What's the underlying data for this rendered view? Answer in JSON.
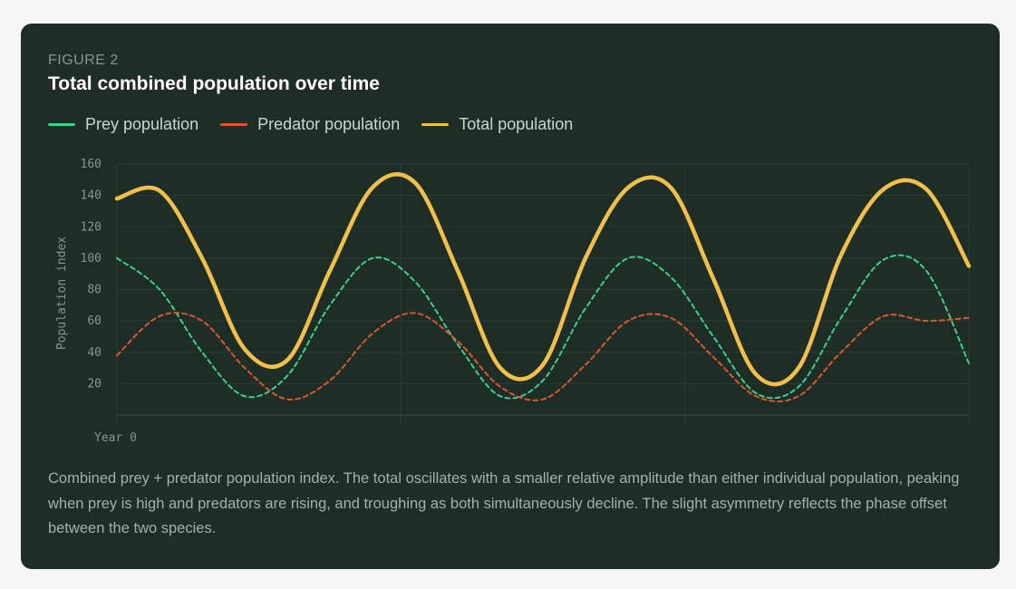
{
  "figure": {
    "label": "FIGURE 2",
    "title": "Total combined population over time",
    "caption": "Combined prey + predator population index. The total oscillates with a smaller relative amplitude than either individual population, peaking when prey is high and predators are rising, and troughing as both simultaneously decline. The slight asymmetry reflects the phase offset between the two species."
  },
  "colors": {
    "background": "#1f2d27",
    "grid": "#2c3d33",
    "axis_text": "#7f9a8c",
    "prey": "#3ecf8e",
    "predator": "#d65a2e",
    "total": "#f2c04a"
  },
  "chart_data": {
    "type": "line",
    "ylabel": "Population index",
    "xlabel": "",
    "x_tick_labels": [
      "Year 0"
    ],
    "ylim": [
      0,
      160
    ],
    "yticks": [
      20,
      40,
      60,
      80,
      100,
      120,
      140,
      160
    ],
    "xlim": [
      0,
      10
    ],
    "grid": true,
    "legend_position": "top-left",
    "series": [
      {
        "name": "Prey population",
        "color": "#3ecf8e",
        "style": "dashed",
        "x": [
          0,
          0.5,
          1,
          1.5,
          2,
          2.5,
          3,
          3.5,
          4,
          4.5,
          5,
          5.5,
          6,
          6.5,
          7,
          7.5,
          8,
          8.5,
          9,
          9.5,
          10
        ],
        "y": [
          100,
          80,
          40,
          12,
          25,
          70,
          100,
          85,
          45,
          12,
          22,
          68,
          100,
          88,
          50,
          14,
          18,
          62,
          99,
          92,
          33
        ]
      },
      {
        "name": "Predator population",
        "color": "#d65a2e",
        "style": "dashed",
        "x": [
          0,
          0.5,
          1,
          1.5,
          2,
          2.5,
          3,
          3.5,
          4,
          4.5,
          5,
          5.5,
          6,
          6.5,
          7,
          7.5,
          8,
          8.5,
          9,
          9.5,
          10
        ],
        "y": [
          38,
          63,
          60,
          30,
          10,
          22,
          52,
          65,
          47,
          18,
          10,
          32,
          60,
          62,
          37,
          12,
          12,
          40,
          63,
          60,
          62
        ]
      },
      {
        "name": "Total population",
        "color": "#f2c04a",
        "style": "solid",
        "x": [
          0,
          0.5,
          1,
          1.5,
          2,
          2.5,
          3,
          3.5,
          4,
          4.5,
          5,
          5.5,
          6,
          6.5,
          7,
          7.5,
          8,
          8.5,
          9,
          9.5,
          10
        ],
        "y": [
          138,
          143,
          100,
          42,
          35,
          92,
          145,
          148,
          92,
          30,
          32,
          100,
          145,
          145,
          87,
          26,
          30,
          102,
          144,
          144,
          95
        ]
      }
    ]
  }
}
